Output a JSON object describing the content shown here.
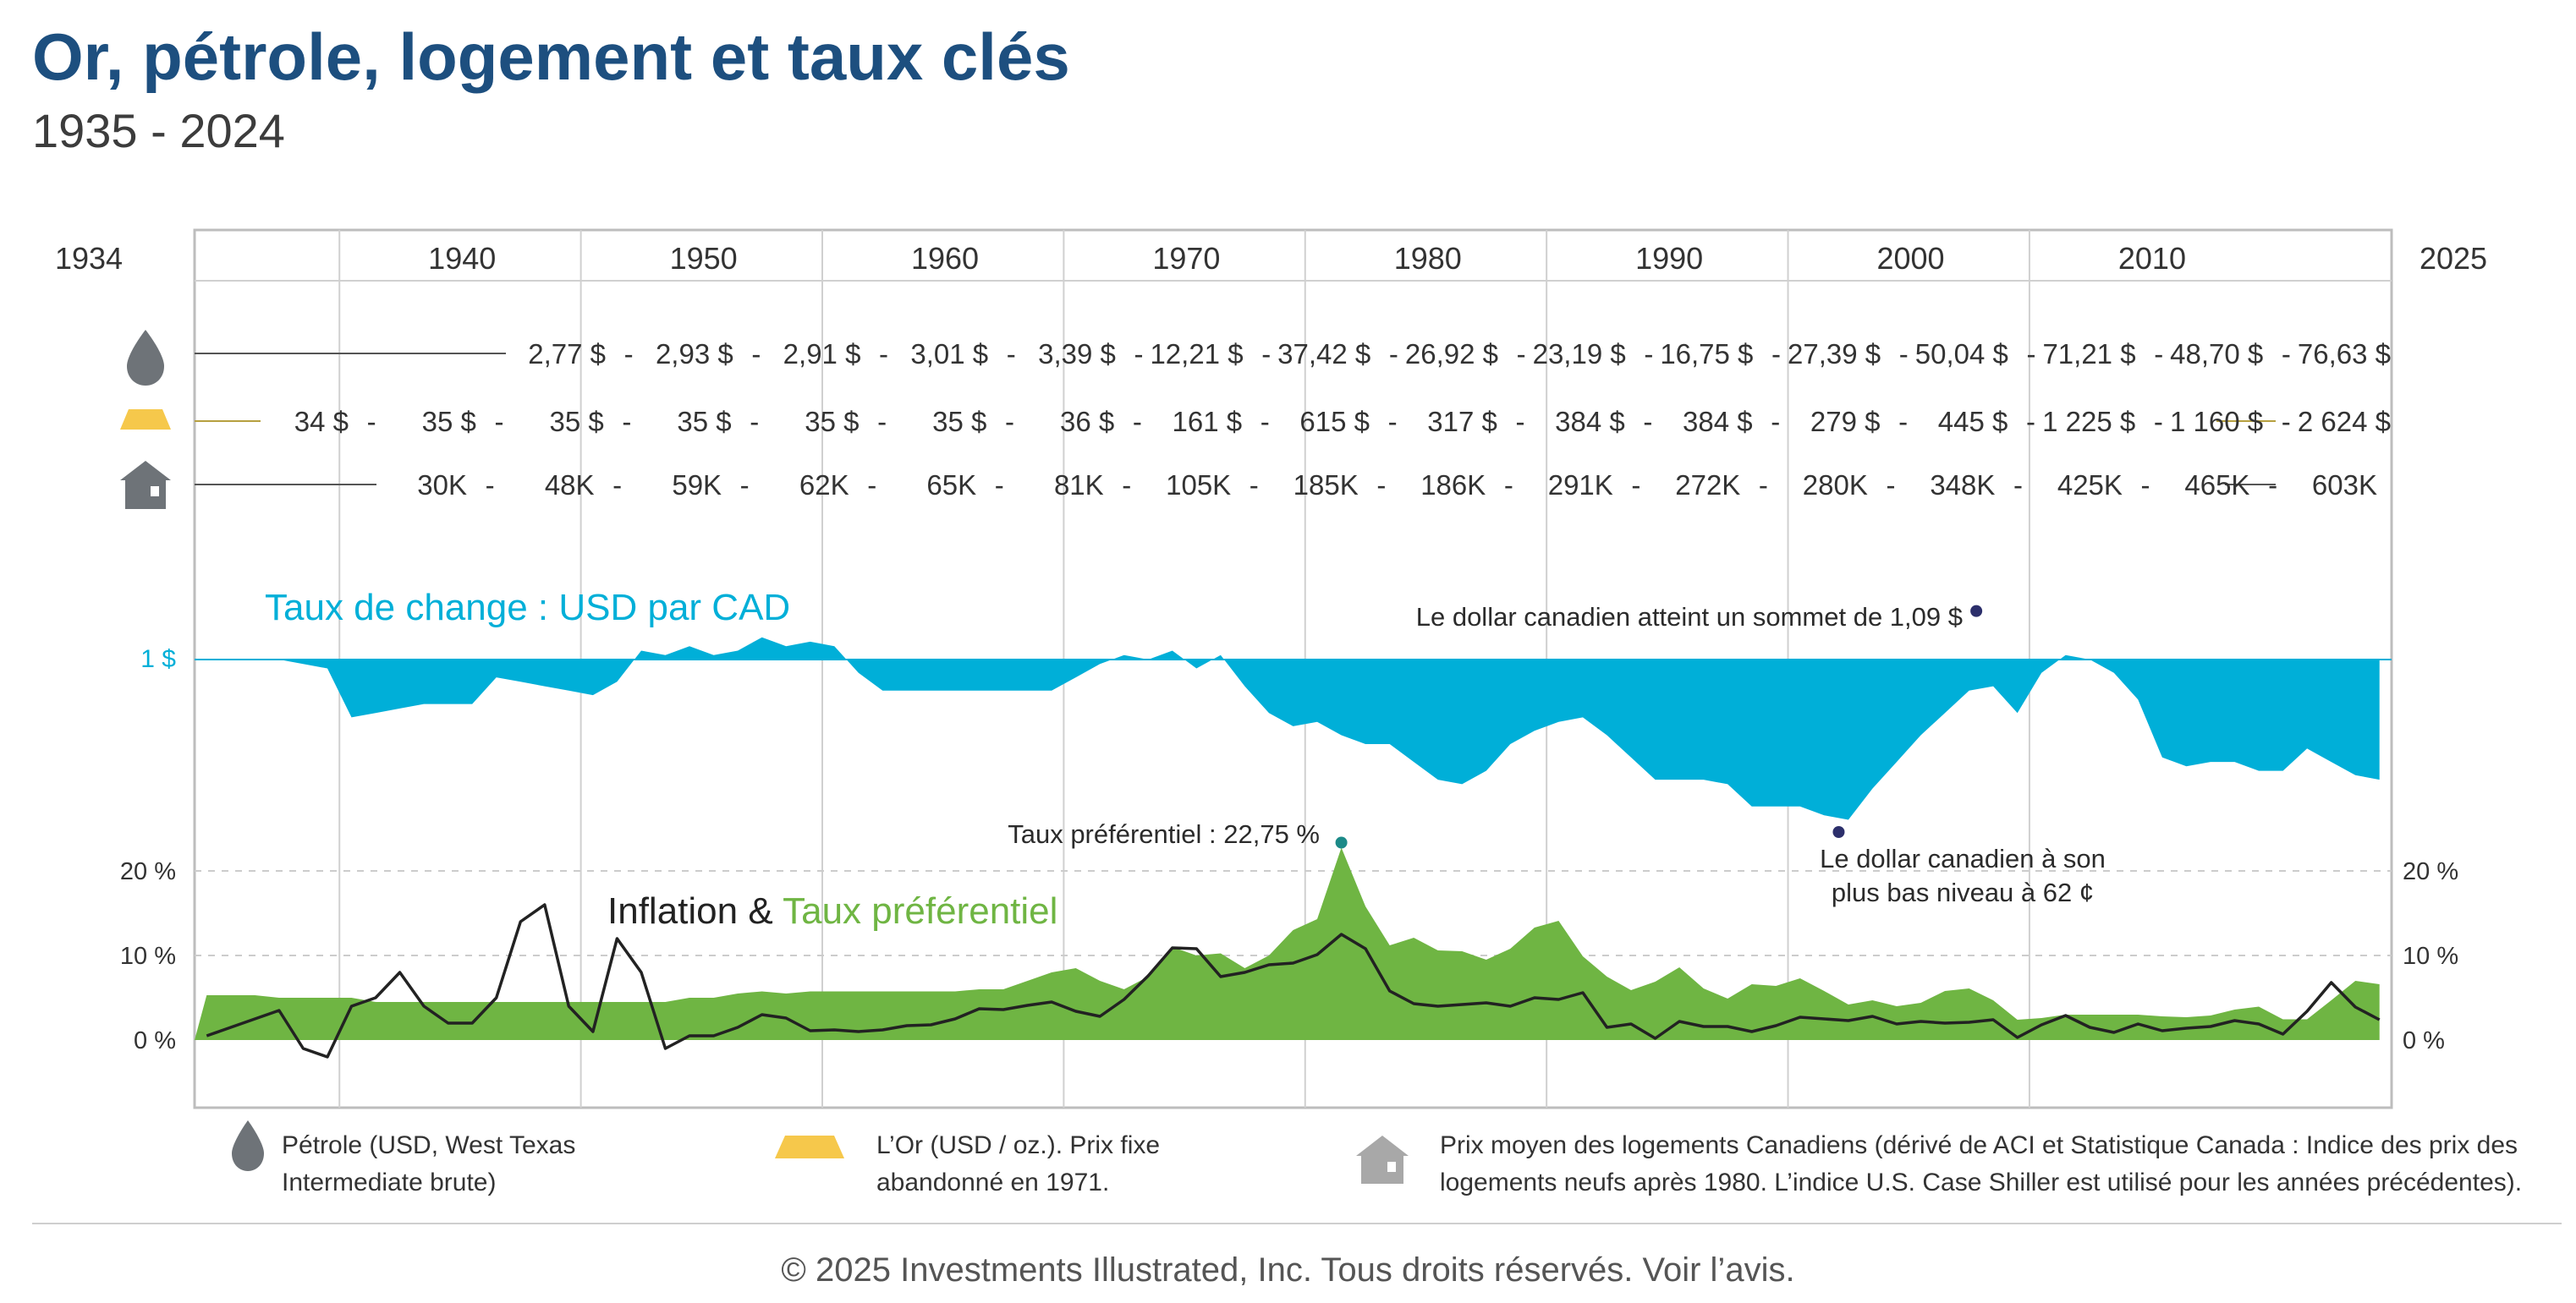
{
  "title": "Or, pétrole, logement et taux clés",
  "subtitle": "1935 - 2024",
  "colors": {
    "title": "#1d4f7f",
    "fx": "#00afd8",
    "prime": "#6fb543",
    "inflation": "#222222",
    "grid": "#cccccc",
    "gold": "#f6c84b",
    "icon": "#6e7378"
  },
  "timeline": {
    "start_label": "1934",
    "end_label": "2025",
    "decades": [
      "1940",
      "1950",
      "1960",
      "1970",
      "1980",
      "1990",
      "2000",
      "2010"
    ],
    "decade_years": [
      1940,
      1950,
      1960,
      1970,
      1980,
      1990,
      2000,
      2010
    ]
  },
  "rows": {
    "oil": {
      "icon": "oil-drop-icon",
      "values": [
        "2,77 $",
        "2,93 $",
        "2,91 $",
        "3,01 $",
        "3,39 $",
        "12,21 $",
        "37,42 $",
        "26,92 $",
        "23,19 $",
        "16,75 $",
        "27,39 $",
        "50,04 $",
        "71,21 $",
        "48,70 $",
        "76,63 $"
      ]
    },
    "gold": {
      "icon": "gold-bar-icon",
      "values": [
        "34 $",
        "35 $",
        "35 $",
        "35 $",
        "35 $",
        "35 $",
        "36 $",
        "161 $",
        "615 $",
        "317 $",
        "384 $",
        "384 $",
        "279 $",
        "445 $",
        "1 225 $",
        "1 160 $",
        "2 624 $"
      ]
    },
    "housing": {
      "icon": "house-icon",
      "values": [
        "30K",
        "48K",
        "59K",
        "62K",
        "65K",
        "81K",
        "105K",
        "185K",
        "186K",
        "291K",
        "272K",
        "280K",
        "348K",
        "425K",
        "465K",
        "603K"
      ]
    }
  },
  "fx_section": {
    "title": "Taux de change : USD par CAD",
    "baseline_label": "1 $",
    "annotation_high": "Le dollar canadien atteint un sommet de 1,09 $",
    "annotation_low_line1": "Le dollar canadien à son",
    "annotation_low_line2": "plus bas niveau à 62 ¢"
  },
  "rates_section": {
    "title_part1": "Inflation & ",
    "title_part2": "Taux préférentiel",
    "annotation_peak": "Taux préférentiel : 22,75 %",
    "ticks_left": [
      "20 %",
      "10 %",
      "0 %"
    ],
    "ticks_right": [
      "20 %",
      "10 %",
      "0 %"
    ],
    "tick_values": [
      20,
      10,
      0
    ]
  },
  "legend": {
    "oil_line1": "Pétrole (USD, West Texas",
    "oil_line2": "Intermediate brute)",
    "gold_line1": "L’Or (USD / oz.). Prix fixe",
    "gold_line2": "abandonné en 1971.",
    "housing_line1": "Prix moyen des logements Canadiens (dérivé de ACI et Statistique Canada : Indice des prix des",
    "housing_line2": "logements neufs après 1980. L’indice U.S. Case Shiller est utilisé pour les années précédentes)."
  },
  "footer": "© 2025 Investments Illustrated, Inc. Tous droits réservés. Voir l’avis.",
  "chart_data": [
    {
      "type": "area",
      "title": "Taux de change : USD par CAD",
      "ylabel": "USD par CAD",
      "ylim": [
        0.6,
        1.12
      ],
      "baseline": 1.0,
      "x": [
        1934,
        1935,
        1936,
        1937,
        1938,
        1939,
        1940,
        1941,
        1942,
        1943,
        1944,
        1945,
        1946,
        1947,
        1948,
        1949,
        1950,
        1951,
        1952,
        1953,
        1954,
        1955,
        1956,
        1957,
        1958,
        1959,
        1960,
        1961,
        1962,
        1963,
        1964,
        1965,
        1966,
        1967,
        1968,
        1969,
        1970,
        1971,
        1972,
        1973,
        1974,
        1975,
        1976,
        1977,
        1978,
        1979,
        1980,
        1981,
        1982,
        1983,
        1984,
        1985,
        1986,
        1987,
        1988,
        1989,
        1990,
        1991,
        1992,
        1993,
        1994,
        1995,
        1996,
        1997,
        1998,
        1999,
        2000,
        2001,
        2002,
        2003,
        2004,
        2005,
        2006,
        2007,
        2008,
        2009,
        2010,
        2011,
        2012,
        2013,
        2014,
        2015,
        2016,
        2017,
        2018,
        2019,
        2020,
        2021,
        2022,
        2023,
        2024
      ],
      "y": [
        1.0,
        1.0,
        1.0,
        1.0,
        0.99,
        0.98,
        0.87,
        0.88,
        0.89,
        0.9,
        0.9,
        0.9,
        0.96,
        0.95,
        0.94,
        0.93,
        0.92,
        0.95,
        1.02,
        1.01,
        1.03,
        1.01,
        1.02,
        1.05,
        1.03,
        1.04,
        1.03,
        0.97,
        0.93,
        0.93,
        0.93,
        0.93,
        0.93,
        0.93,
        0.93,
        0.93,
        0.96,
        0.99,
        1.01,
        1.0,
        1.02,
        0.98,
        1.01,
        0.94,
        0.88,
        0.85,
        0.86,
        0.83,
        0.81,
        0.81,
        0.77,
        0.73,
        0.72,
        0.75,
        0.81,
        0.84,
        0.86,
        0.87,
        0.83,
        0.78,
        0.73,
        0.73,
        0.73,
        0.72,
        0.67,
        0.67,
        0.67,
        0.65,
        0.64,
        0.71,
        0.77,
        0.83,
        0.88,
        0.93,
        0.94,
        0.88,
        0.97,
        1.01,
        1.0,
        0.97,
        0.91,
        0.78,
        0.76,
        0.77,
        0.77,
        0.75,
        0.75,
        0.8,
        0.77,
        0.74,
        0.73
      ],
      "annotations": [
        {
          "x": 2007.8,
          "y": 1.09,
          "text": "Le dollar canadien atteint un sommet de 1,09 $"
        },
        {
          "x": 2002.1,
          "y": 0.62,
          "text": "Le dollar canadien à son plus bas niveau à 62 ¢"
        }
      ]
    },
    {
      "type": "area",
      "title": "Taux préférentiel",
      "ylabel": "%",
      "ylim": [
        -5,
        24
      ],
      "x": [
        1934,
        1935,
        1936,
        1937,
        1938,
        1939,
        1940,
        1941,
        1942,
        1943,
        1944,
        1945,
        1946,
        1947,
        1948,
        1949,
        1950,
        1951,
        1952,
        1953,
        1954,
        1955,
        1956,
        1957,
        1958,
        1959,
        1960,
        1961,
        1962,
        1963,
        1964,
        1965,
        1966,
        1967,
        1968,
        1969,
        1970,
        1971,
        1972,
        1973,
        1974,
        1975,
        1976,
        1977,
        1978,
        1979,
        1980,
        1981,
        1982,
        1983,
        1984,
        1985,
        1986,
        1987,
        1988,
        1989,
        1990,
        1991,
        1992,
        1993,
        1994,
        1995,
        1996,
        1997,
        1998,
        1999,
        2000,
        2001,
        2002,
        2003,
        2004,
        2005,
        2006,
        2007,
        2008,
        2009,
        2010,
        2011,
        2012,
        2013,
        2014,
        2015,
        2016,
        2017,
        2018,
        2019,
        2020,
        2021,
        2022,
        2023,
        2024
      ],
      "y": [
        5.3,
        5.3,
        5.3,
        5.0,
        5.0,
        5.0,
        5.0,
        4.5,
        4.5,
        4.5,
        4.5,
        4.5,
        4.5,
        4.5,
        4.5,
        4.5,
        4.5,
        4.5,
        4.5,
        4.5,
        5.0,
        5.0,
        5.5,
        5.75,
        5.5,
        5.75,
        5.75,
        5.75,
        5.75,
        5.75,
        5.75,
        5.75,
        6.0,
        6.0,
        7.0,
        8.0,
        8.5,
        7.0,
        6.0,
        7.5,
        11.0,
        10.0,
        10.25,
        8.5,
        10.0,
        13.0,
        14.3,
        22.75,
        15.8,
        11.2,
        12.1,
        10.6,
        10.5,
        9.5,
        10.8,
        13.3,
        14.1,
        9.9,
        7.5,
        5.9,
        6.9,
        8.6,
        6.1,
        4.9,
        6.6,
        6.4,
        7.3,
        5.8,
        4.2,
        4.7,
        4.0,
        4.4,
        5.8,
        6.1,
        4.7,
        2.4,
        2.6,
        3.0,
        3.0,
        3.0,
        3.0,
        2.8,
        2.7,
        2.9,
        3.6,
        3.95,
        2.45,
        2.45,
        4.7,
        7.0,
        6.6
      ]
    },
    {
      "type": "line",
      "title": "Inflation",
      "ylabel": "%",
      "ylim": [
        -5,
        24
      ],
      "x": [
        1934,
        1935,
        1936,
        1937,
        1938,
        1939,
        1940,
        1941,
        1942,
        1943,
        1944,
        1945,
        1946,
        1947,
        1948,
        1949,
        1950,
        1951,
        1952,
        1953,
        1954,
        1955,
        1956,
        1957,
        1958,
        1959,
        1960,
        1961,
        1962,
        1963,
        1964,
        1965,
        1966,
        1967,
        1968,
        1969,
        1970,
        1971,
        1972,
        1973,
        1974,
        1975,
        1976,
        1977,
        1978,
        1979,
        1980,
        1981,
        1982,
        1983,
        1984,
        1985,
        1986,
        1987,
        1988,
        1989,
        1990,
        1991,
        1992,
        1993,
        1994,
        1995,
        1996,
        1997,
        1998,
        1999,
        2000,
        2001,
        2002,
        2003,
        2004,
        2005,
        2006,
        2007,
        2008,
        2009,
        2010,
        2011,
        2012,
        2013,
        2014,
        2015,
        2016,
        2017,
        2018,
        2019,
        2020,
        2021,
        2022,
        2023,
        2024
      ],
      "y": [
        0.5,
        1.5,
        2.5,
        3.5,
        -1.0,
        -2.0,
        4.0,
        5.0,
        8.0,
        4.0,
        2.0,
        2.0,
        5.0,
        14.0,
        16.0,
        4.0,
        1.0,
        12.0,
        8.0,
        -1.0,
        0.5,
        0.5,
        1.5,
        3.0,
        2.6,
        1.1,
        1.2,
        1.0,
        1.2,
        1.7,
        1.8,
        2.5,
        3.7,
        3.6,
        4.1,
        4.5,
        3.4,
        2.8,
        4.8,
        7.6,
        10.9,
        10.8,
        7.5,
        8.0,
        8.9,
        9.1,
        10.1,
        12.5,
        10.8,
        5.8,
        4.3,
        4.0,
        4.2,
        4.4,
        4.0,
        5.0,
        4.8,
        5.6,
        1.5,
        1.9,
        0.2,
        2.2,
        1.6,
        1.6,
        1.0,
        1.7,
        2.7,
        2.5,
        2.3,
        2.8,
        1.9,
        2.2,
        2.0,
        2.1,
        2.4,
        0.3,
        1.8,
        2.9,
        1.5,
        0.9,
        1.9,
        1.1,
        1.4,
        1.6,
        2.3,
        1.9,
        0.7,
        3.4,
        6.8,
        3.9,
        2.4
      ]
    }
  ]
}
